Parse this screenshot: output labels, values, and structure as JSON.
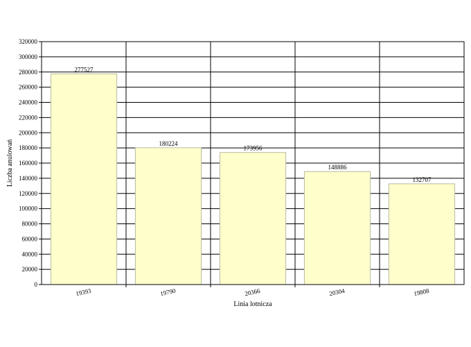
{
  "chart_data": {
    "type": "bar",
    "categories": [
      "19393",
      "19790",
      "20366",
      "20304",
      "19808"
    ],
    "values": [
      277527,
      180224,
      173956,
      148886,
      132707
    ],
    "data_labels": [
      "277527",
      "180224",
      "173956",
      "148886",
      "132707"
    ],
    "title": "",
    "xlabel": "Linia lotnicza",
    "ylabel": "Liczba anulowań",
    "ylim": [
      0,
      320000
    ],
    "ytick_step": 20000,
    "grid": true,
    "legend": "none",
    "colors": {
      "bar_fill": "#ffffcc",
      "bar_stroke": "#b8b8a0",
      "grid": "#000000",
      "axis": "#000000"
    }
  }
}
